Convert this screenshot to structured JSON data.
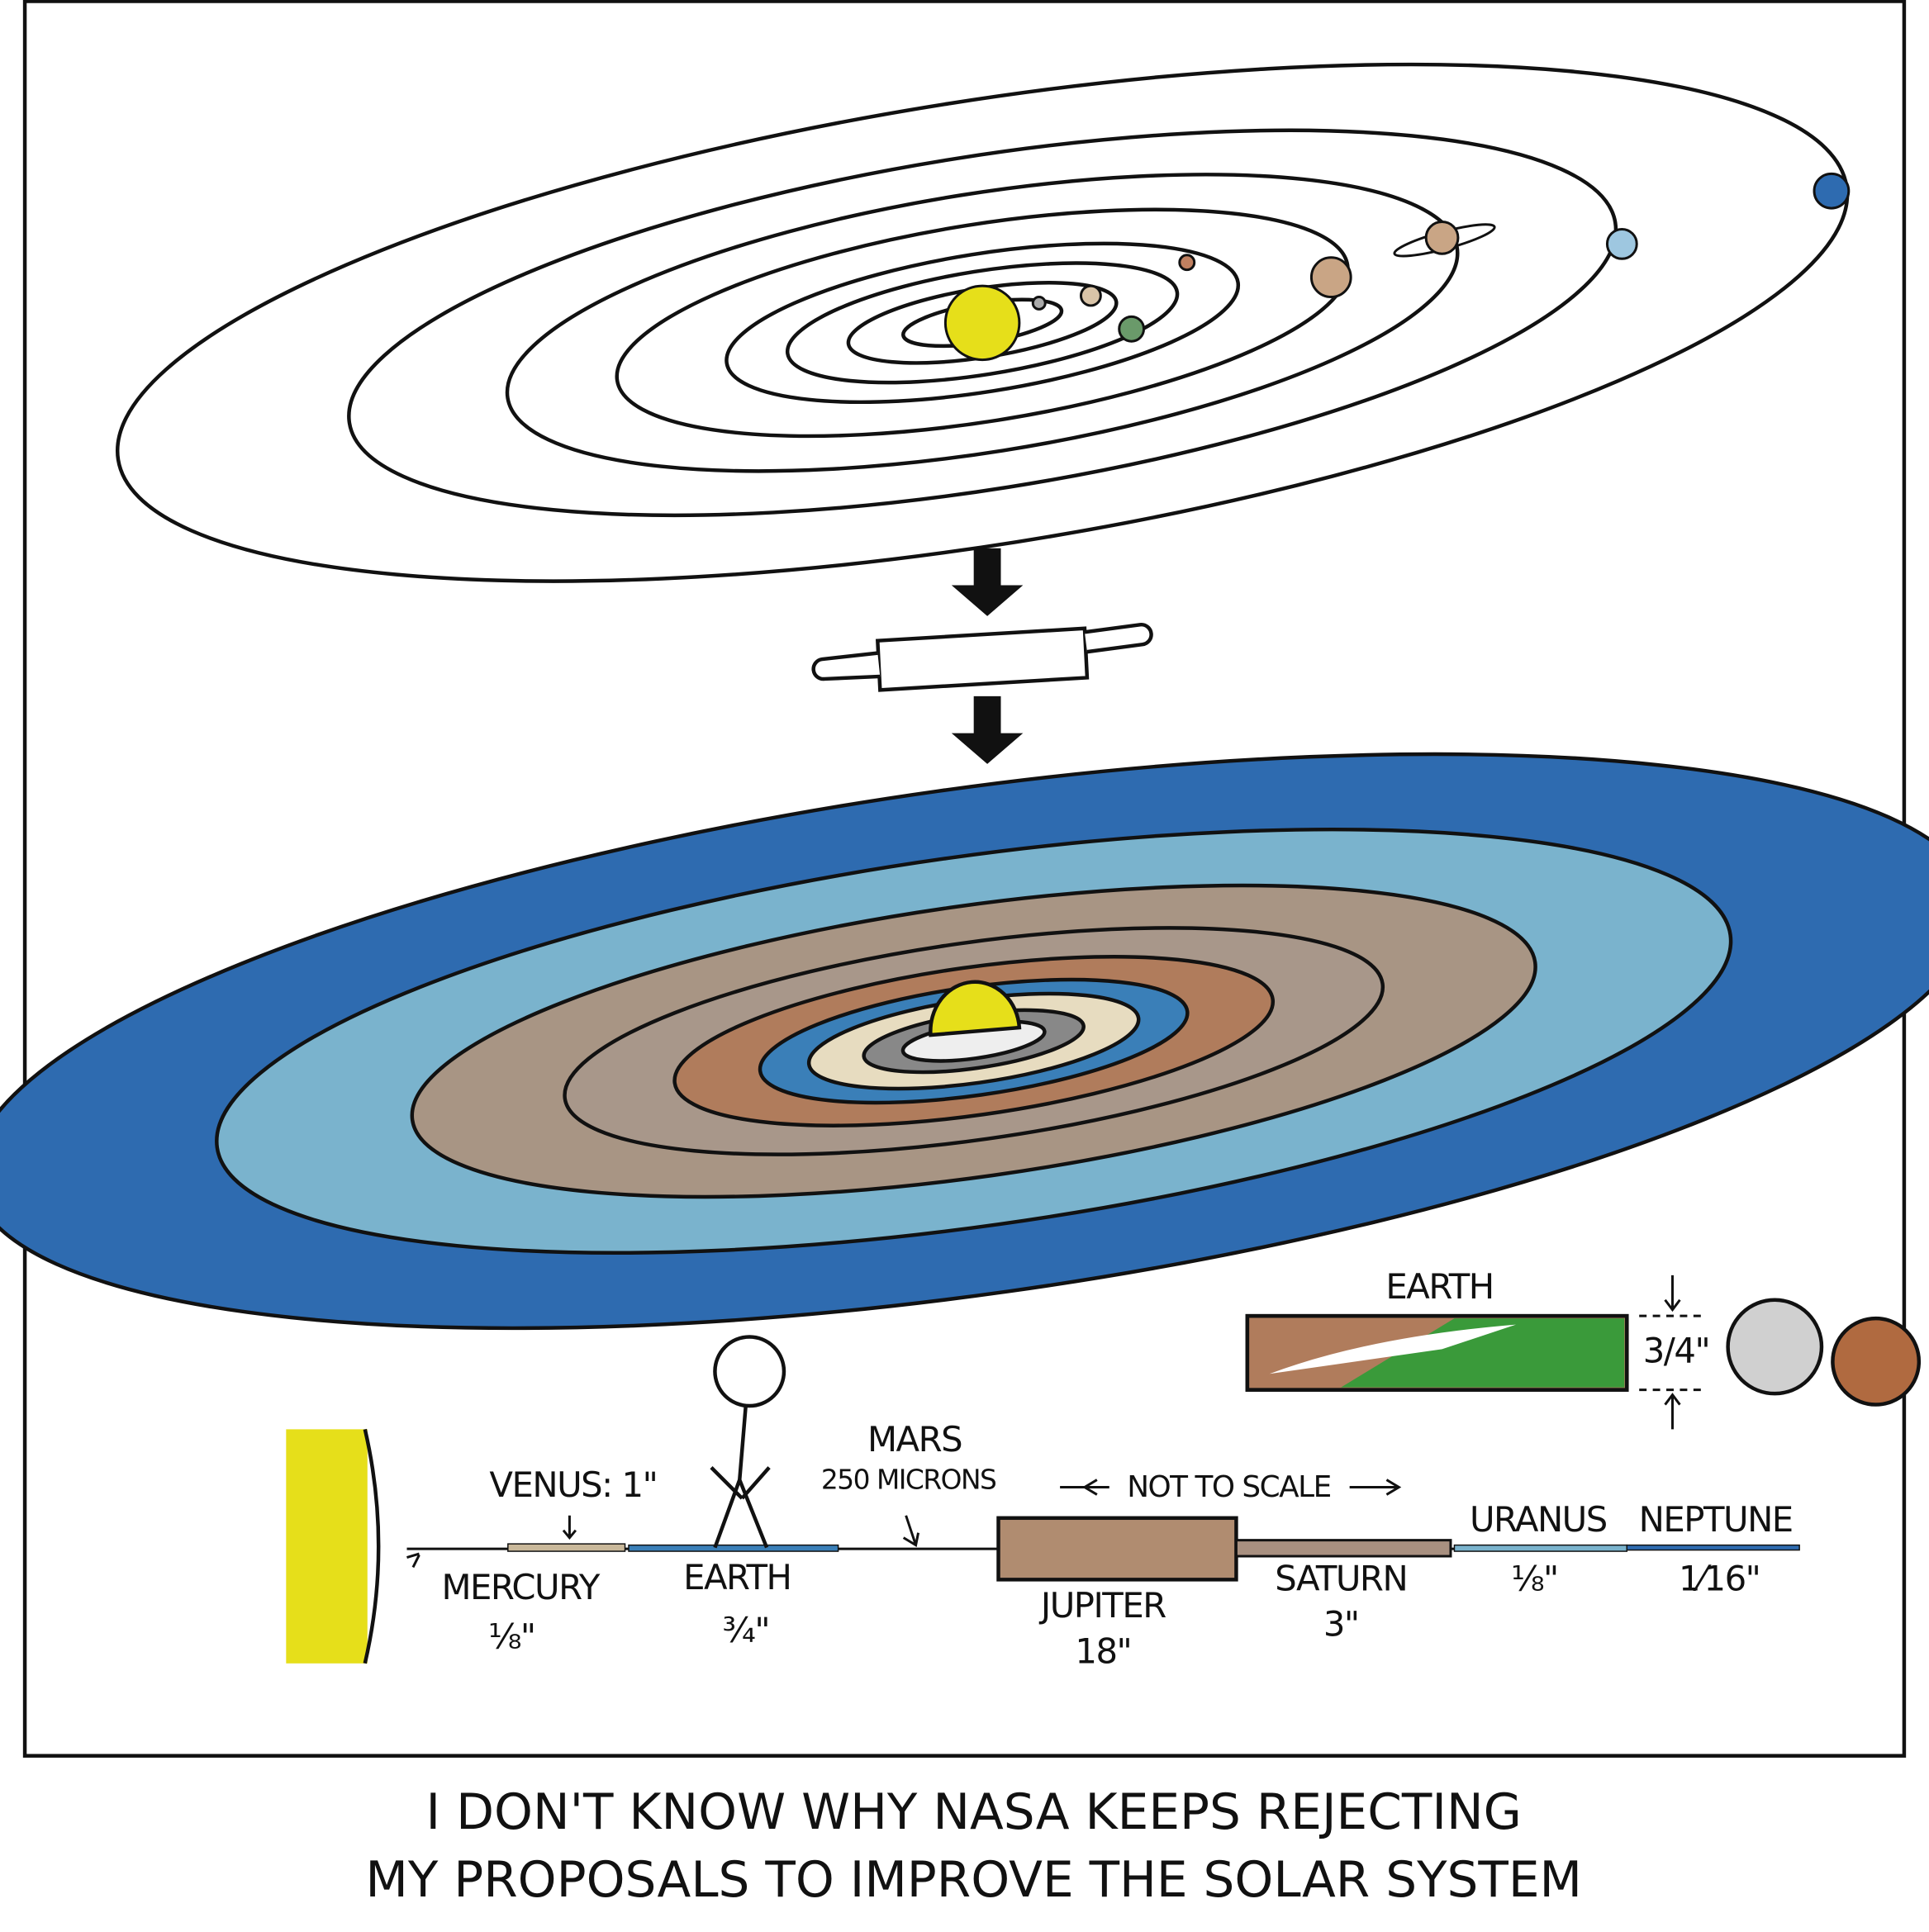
{
  "panel": {
    "earth_section": {
      "title": "EARTH",
      "thickness": "3/4\""
    },
    "venus": "VENUS: 1\"",
    "mercury": {
      "name": "MERCURY",
      "size": "⅛\""
    },
    "earth": {
      "name": "EARTH",
      "size": "¾\""
    },
    "mars": {
      "name": "MARS",
      "size": "250 MICRONS"
    },
    "scale_note": "NOT TO SCALE",
    "jupiter": {
      "name": "JUPITER",
      "size": "18\""
    },
    "saturn": {
      "name": "SATURN",
      "size": "3\""
    },
    "uranus": {
      "name": "URANUS",
      "size": "⅛\""
    },
    "neptune": {
      "name": "NEPTUNE",
      "size": "1⁄16\""
    }
  },
  "caption": [
    "I DON'T KNOW WHY NASA KEEPS REJECTING",
    "MY PROPOSALS TO IMPROVE THE SOLAR SYSTEM"
  ]
}
